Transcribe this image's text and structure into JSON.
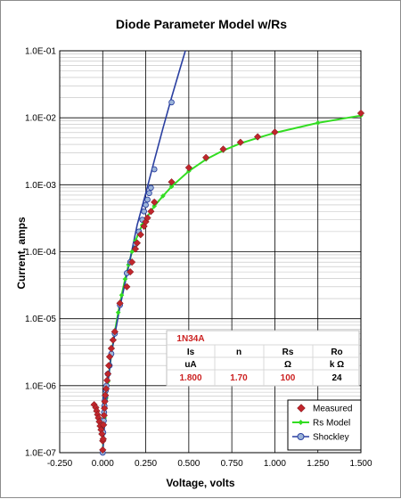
{
  "chart_data": {
    "type": "scatter",
    "title": "Diode Parameter Model w/Rs",
    "xlabel": "Voltage, volts",
    "ylabel": "Current, amps",
    "x_range": [
      -0.25,
      1.5
    ],
    "y_range": [
      1e-07,
      0.1
    ],
    "y_scale": "log",
    "grid": true,
    "legend_position": "bottom-right",
    "x_ticks": [
      "-0.250",
      "0.000",
      "0.250",
      "0.500",
      "0.750",
      "1.000",
      "1.250",
      "1.500"
    ],
    "x_tick_values": [
      -0.25,
      0,
      0.25,
      0.5,
      0.75,
      1.0,
      1.25,
      1.5
    ],
    "y_ticks": [
      "1.0E-07",
      "1.0E-06",
      "1.0E-05",
      "1.0E-04",
      "1.0E-03",
      "1.0E-02",
      "1.0E-01"
    ],
    "y_tick_values": [
      1e-07,
      1e-06,
      1e-05,
      0.0001,
      0.001,
      0.01,
      0.1
    ],
    "colors": {
      "measured": "#c0262c",
      "model": "#33dd22",
      "shockley": "#2a3fa0",
      "shockley_marker": "#9bb4d8",
      "table_text": "#cc2222"
    },
    "series": [
      {
        "name": "Measured",
        "marker": "diamond",
        "points": [
          [
            -0.05,
            5.2e-07
          ],
          [
            -0.04,
            4.7e-07
          ],
          [
            -0.035,
            4.2e-07
          ],
          [
            -0.03,
            3.7e-07
          ],
          [
            -0.025,
            3.3e-07
          ],
          [
            -0.02,
            2.9e-07
          ],
          [
            -0.015,
            2.5e-07
          ],
          [
            -0.01,
            2.2e-07
          ],
          [
            -0.005,
            1.9e-07
          ],
          [
            0.0,
            1.5e-07
          ],
          [
            0.0,
            1.1e-07
          ],
          [
            0.003,
            1.6e-07
          ],
          [
            0.005,
            2.6e-07
          ],
          [
            0.008,
            3.6e-07
          ],
          [
            0.01,
            4.6e-07
          ],
          [
            0.012,
            5.8e-07
          ],
          [
            0.015,
            7.2e-07
          ],
          [
            0.02,
            9e-07
          ],
          [
            0.025,
            1.2e-06
          ],
          [
            0.03,
            1.5e-06
          ],
          [
            0.035,
            2e-06
          ],
          [
            0.04,
            2.7e-06
          ],
          [
            0.05,
            3.6e-06
          ],
          [
            0.06,
            4.8e-06
          ],
          [
            0.07,
            6.4e-06
          ],
          [
            0.1,
            1.7e-05
          ],
          [
            0.14,
            3e-05
          ],
          [
            0.16,
            5e-05
          ],
          [
            0.17,
            7e-05
          ],
          [
            0.19,
            0.00011
          ],
          [
            0.2,
            0.000135
          ],
          [
            0.22,
            0.00018
          ],
          [
            0.24,
            0.00024
          ],
          [
            0.25,
            0.00028
          ],
          [
            0.26,
            0.00032
          ],
          [
            0.28,
            0.0004
          ],
          [
            0.3,
            0.00055
          ],
          [
            0.4,
            0.0011
          ],
          [
            0.5,
            0.0018
          ],
          [
            0.6,
            0.00255
          ],
          [
            0.7,
            0.0034
          ],
          [
            0.8,
            0.0043
          ],
          [
            0.9,
            0.0052
          ],
          [
            1.0,
            0.0061
          ],
          [
            1.5,
            0.0117
          ]
        ]
      },
      {
        "name": "Rs Model",
        "marker": "diamond-small",
        "points": [
          [
            0.0,
            1e-07
          ],
          [
            0.01,
            3.3e-07
          ],
          [
            0.02,
            6.5e-07
          ],
          [
            0.03,
            1.15e-06
          ],
          [
            0.05,
            2.9e-06
          ],
          [
            0.07,
            6.3e-06
          ],
          [
            0.09,
            1.24e-05
          ],
          [
            0.11,
            2.25e-05
          ],
          [
            0.13,
            3.9e-05
          ],
          [
            0.15,
            6.4e-05
          ],
          [
            0.17,
            0.0001
          ],
          [
            0.19,
            0.000145
          ],
          [
            0.21,
            0.000195
          ],
          [
            0.23,
            0.00025
          ],
          [
            0.25,
            0.00031
          ],
          [
            0.28,
            0.0004
          ],
          [
            0.3,
            0.00048
          ],
          [
            0.35,
            0.00068
          ],
          [
            0.4,
            0.00094
          ],
          [
            0.5,
            0.0016
          ],
          [
            0.6,
            0.0024
          ],
          [
            0.7,
            0.00325
          ],
          [
            0.8,
            0.00415
          ],
          [
            0.9,
            0.005
          ],
          [
            1.0,
            0.00595
          ],
          [
            1.25,
            0.0084
          ],
          [
            1.5,
            0.0108
          ]
        ]
      },
      {
        "name": "Shockley",
        "marker": "circle",
        "line_points": [
          [
            0.0,
            1e-07
          ],
          [
            0.02,
            6.5e-07
          ],
          [
            0.05,
            3e-06
          ],
          [
            0.1,
            1.5e-05
          ],
          [
            0.15,
            6e-05
          ],
          [
            0.2,
            0.00025
          ],
          [
            0.25,
            0.00075
          ],
          [
            0.3,
            0.0023
          ],
          [
            0.35,
            0.007
          ],
          [
            0.4,
            0.02
          ],
          [
            0.45,
            0.055
          ],
          [
            0.48,
            0.1
          ]
        ],
        "markers": [
          [
            0.0,
            1e-07
          ],
          [
            0.003,
            2e-07
          ],
          [
            0.006,
            3e-07
          ],
          [
            0.008,
            4e-07
          ],
          [
            0.01,
            5e-07
          ],
          [
            0.012,
            6e-07
          ],
          [
            0.015,
            7e-07
          ],
          [
            0.018,
            8.5e-07
          ],
          [
            0.022,
            1e-06
          ],
          [
            0.03,
            1.5e-06
          ],
          [
            0.04,
            2e-06
          ],
          [
            0.05,
            3e-06
          ],
          [
            0.07,
            6e-06
          ],
          [
            0.1,
            1.6e-05
          ],
          [
            0.14,
            4.8e-05
          ],
          [
            0.16,
            7e-05
          ],
          [
            0.19,
            0.00013
          ],
          [
            0.21,
            0.0002
          ],
          [
            0.23,
            0.0003
          ],
          [
            0.24,
            0.0004
          ],
          [
            0.25,
            0.0005
          ],
          [
            0.26,
            0.0006
          ],
          [
            0.27,
            0.00075
          ],
          [
            0.28,
            0.0009
          ],
          [
            0.3,
            0.0017
          ],
          [
            0.4,
            0.017
          ]
        ]
      }
    ],
    "table": {
      "title": "1N34A",
      "headers": [
        "Is",
        "n",
        "Rs",
        "Ro"
      ],
      "units": [
        "uA",
        "",
        "Ω",
        "k Ω"
      ],
      "values": [
        "1.800",
        "1.70",
        "100",
        "24"
      ]
    }
  }
}
